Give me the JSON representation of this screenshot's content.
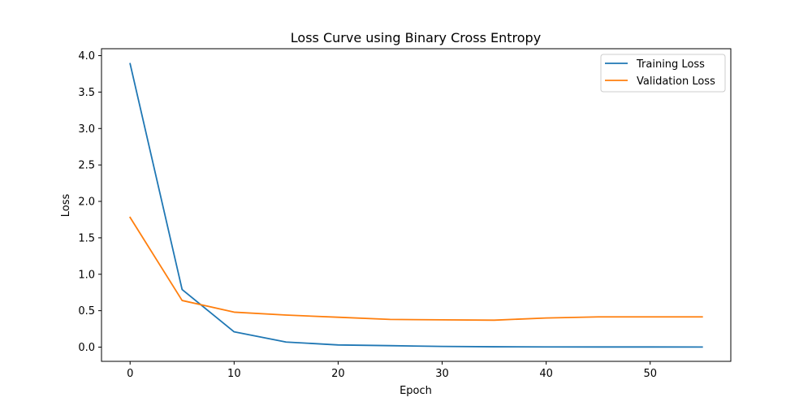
{
  "chart_data": {
    "type": "line",
    "title": "Loss Curve using Binary Cross Entropy",
    "xlabel": "Epoch",
    "ylabel": "Loss",
    "xlim": [
      -2.75,
      57.75
    ],
    "ylim": [
      -0.195,
      4.095
    ],
    "x_ticks": [
      0,
      10,
      20,
      30,
      40,
      50
    ],
    "y_ticks": [
      0.0,
      0.5,
      1.0,
      1.5,
      2.0,
      2.5,
      3.0,
      3.5,
      4.0
    ],
    "y_tick_labels": [
      "0.0",
      "0.5",
      "1.0",
      "1.5",
      "2.0",
      "2.5",
      "3.0",
      "3.5",
      "4.0"
    ],
    "grid": false,
    "legend_position": "top-right",
    "x": [
      0,
      5,
      10,
      15,
      20,
      25,
      30,
      35,
      40,
      45,
      50,
      55
    ],
    "series": [
      {
        "name": "Training Loss",
        "color": "#1f77b4",
        "values": [
          3.89,
          0.79,
          0.21,
          0.07,
          0.03,
          0.02,
          0.01,
          0.005,
          0.003,
          0.002,
          0.002,
          0.001
        ]
      },
      {
        "name": "Validation Loss",
        "color": "#ff7f0e",
        "values": [
          1.78,
          0.64,
          0.48,
          0.44,
          0.41,
          0.38,
          0.375,
          0.37,
          0.4,
          0.415,
          0.415,
          0.415
        ]
      }
    ]
  }
}
